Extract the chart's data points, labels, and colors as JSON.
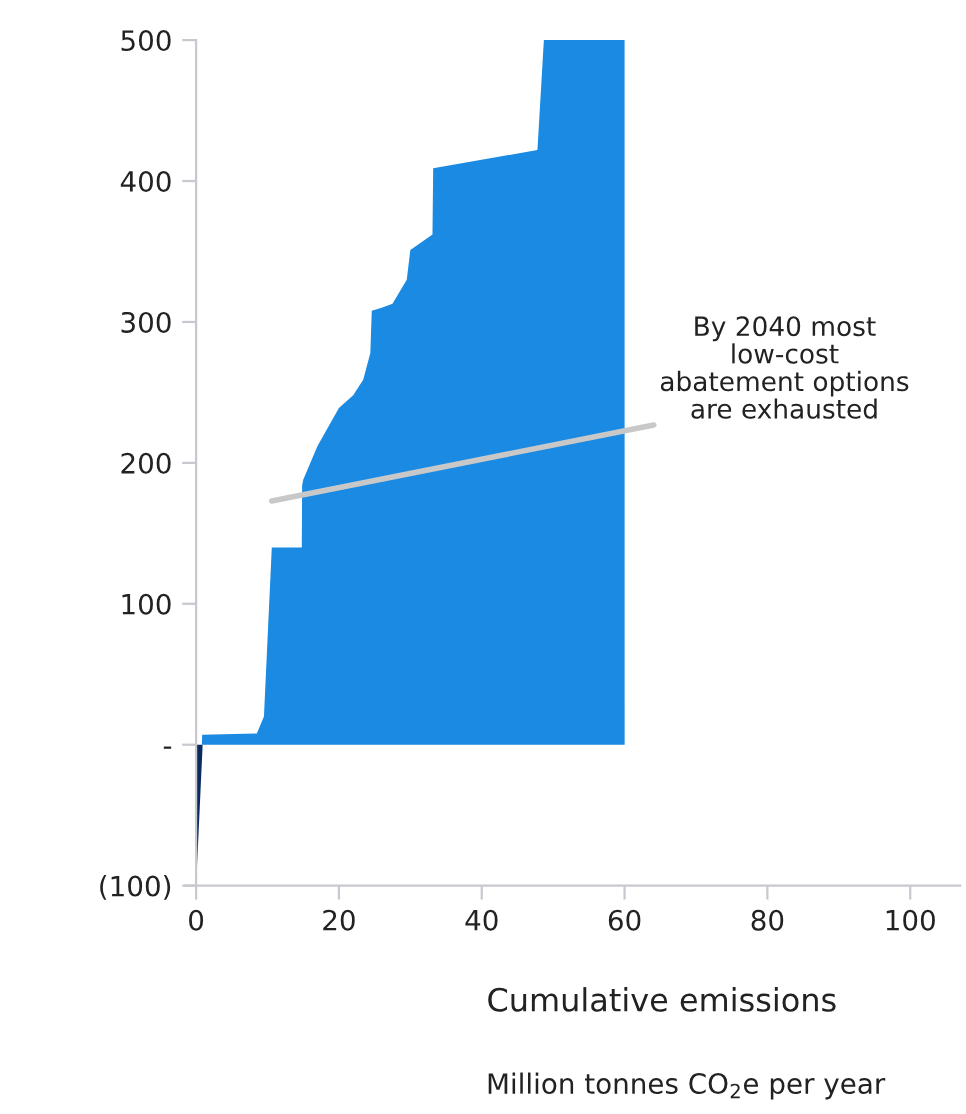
{
  "chart_data": {
    "type": "area",
    "xlabel": "Cumulative emissions",
    "series": [
      {
        "color": "#0b2a5e",
        "x": [
          0,
          0.9
        ],
        "values": [
          -100,
          -2
        ]
      },
      {
        "color": "#1a8ae2",
        "x": [
          0.8,
          0.85,
          8.5,
          9.5,
          10.6,
          14.8,
          14.85,
          15.0,
          17,
          20,
          22,
          23.4,
          24.4,
          24.6,
          26,
          27.5,
          29.5,
          30.0,
          31.4,
          33.1,
          33.2,
          47.8,
          48.7,
          60.0,
          60.01
        ],
        "values": [
          0,
          7,
          8,
          20,
          140,
          140,
          184,
          188,
          212,
          239,
          248,
          259,
          278,
          308,
          310,
          313,
          330,
          351,
          356,
          362,
          409,
          422,
          500,
          500,
          0
        ]
      }
    ],
    "xlim": [
      0,
      107
    ],
    "xticks": [
      0,
      20,
      40,
      60,
      80,
      100
    ],
    "ylim": [
      -100,
      500
    ],
    "yticks": [
      {
        "value": -100,
        "label": "(100)"
      },
      {
        "value": 0,
        "label": "-"
      },
      100,
      200,
      300,
      400,
      500
    ],
    "annotations": [
      "By 2040 most\nlow-cost\nabatement options\nare exhausted",
      "Million tonnes CO$_{2}$e per year"
    ]
  }
}
